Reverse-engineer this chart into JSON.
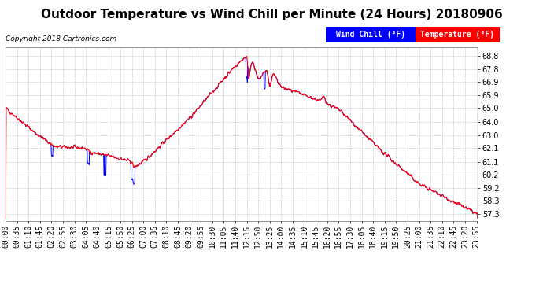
{
  "title": "Outdoor Temperature vs Wind Chill per Minute (24 Hours) 20180906",
  "copyright": "Copyright 2018 Cartronics.com",
  "legend_wind_chill": "Wind Chill (°F)",
  "legend_temp": "Temperature (°F)",
  "wind_chill_color": "#0000ff",
  "temp_color": "#ff0000",
  "background_color": "#ffffff",
  "grid_color": "#bbbbbb",
  "yticks": [
    57.3,
    58.3,
    59.2,
    60.2,
    61.1,
    62.1,
    63.0,
    64.0,
    65.0,
    65.9,
    66.9,
    67.8,
    68.8
  ],
  "ylim": [
    56.8,
    69.4
  ],
  "title_fontsize": 11,
  "copyright_fontsize": 6.5,
  "legend_fontsize": 7,
  "tick_fontsize": 7
}
